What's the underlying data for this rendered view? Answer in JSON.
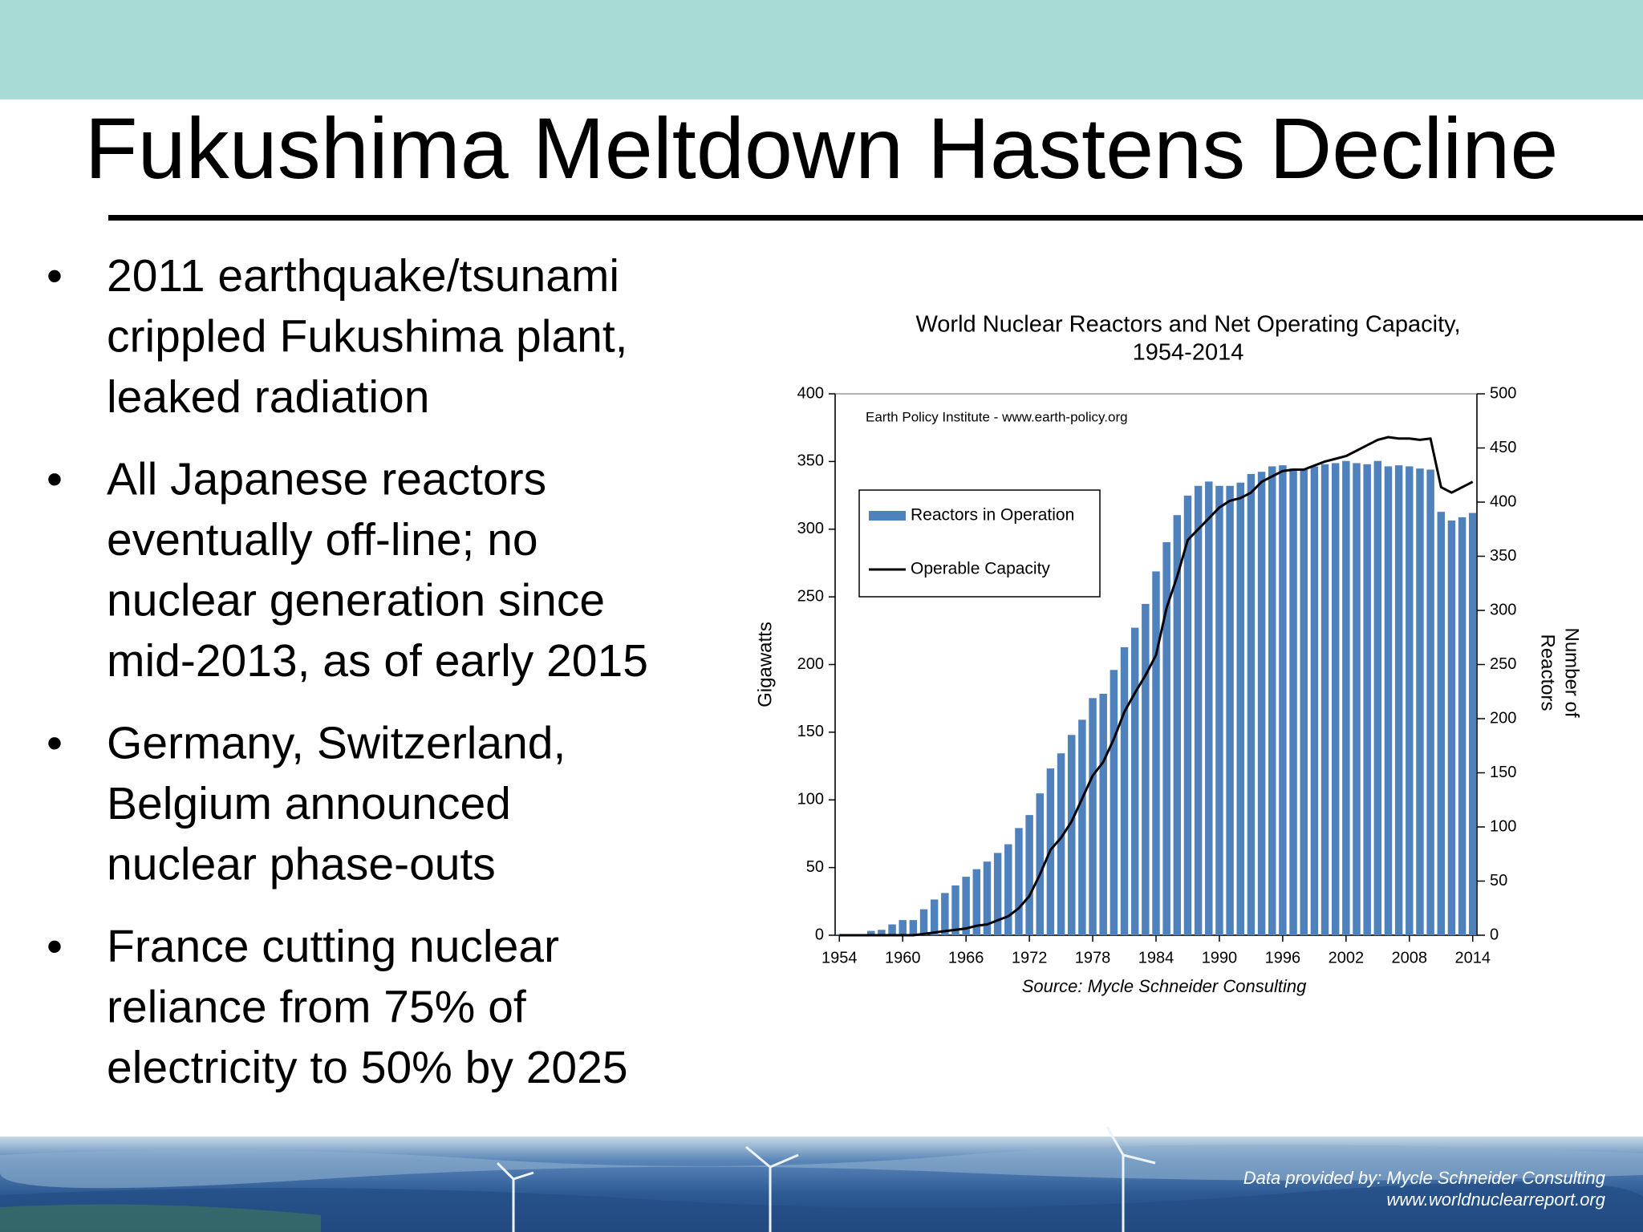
{
  "header": {
    "title": "Fukushima Meltdown Hastens Decline"
  },
  "bullets": [
    [
      "2011 earthquake/tsunami",
      "crippled Fukushima plant,",
      "leaked radiation"
    ],
    [
      "All Japanese reactors",
      "eventually off-line; no",
      "nuclear generation since",
      "mid-2013, as of early 2015"
    ],
    [
      "Germany, Switzerland,",
      "Belgium announced",
      "nuclear phase-outs"
    ],
    [
      "France cutting nuclear",
      "reliance from 75% of",
      "electricity to 50% by 2025"
    ]
  ],
  "chart_data": {
    "type": "bar",
    "title": [
      "World Nuclear Reactors and Net Operating Capacity,",
      "1954-2014"
    ],
    "annotation": "Earth Policy Institute - www.earth-policy.org",
    "source": "Source: Mycle Schneider Consulting",
    "ylabel": "Gigawatts",
    "y2label": [
      "Number of",
      "Reactors"
    ],
    "legend": "upper left",
    "x": [
      1954,
      1955,
      1956,
      1957,
      1958,
      1959,
      1960,
      1961,
      1962,
      1963,
      1964,
      1965,
      1966,
      1967,
      1968,
      1969,
      1970,
      1971,
      1972,
      1973,
      1974,
      1975,
      1976,
      1977,
      1978,
      1979,
      1980,
      1981,
      1982,
      1983,
      1984,
      1985,
      1986,
      1987,
      1988,
      1989,
      1990,
      1991,
      1992,
      1993,
      1994,
      1995,
      1996,
      1997,
      1998,
      1999,
      2000,
      2001,
      2002,
      2003,
      2004,
      2005,
      2006,
      2007,
      2008,
      2009,
      2010,
      2011,
      2012,
      2013,
      2014
    ],
    "xlim": [
      1953.6,
      2014.4
    ],
    "xticks": [
      1954,
      1960,
      1966,
      1972,
      1978,
      1984,
      1990,
      1996,
      2002,
      2008,
      2014
    ],
    "ylim": [
      0,
      400
    ],
    "yticks": [
      0,
      50,
      100,
      150,
      200,
      250,
      300,
      350,
      400
    ],
    "y2lim": [
      0,
      500
    ],
    "y2ticks": [
      0,
      50,
      100,
      150,
      200,
      250,
      300,
      350,
      400,
      450,
      500
    ],
    "series": [
      {
        "name": "Reactors in Operation",
        "type": "bar",
        "axis": "y2",
        "color": "#4f81bd",
        "values": [
          1,
          1,
          1,
          4,
          5,
          10,
          14,
          14,
          24,
          33,
          39,
          46,
          54,
          61,
          68,
          76,
          84,
          99,
          111,
          131,
          154,
          168,
          185,
          199,
          219,
          223,
          245,
          266,
          284,
          306,
          336,
          363,
          388,
          406,
          415,
          419,
          415,
          415,
          418,
          426,
          428,
          433,
          434,
          431,
          430,
          433,
          435,
          436,
          438,
          436,
          435,
          438,
          433,
          434,
          433,
          431,
          430,
          391,
          383,
          386,
          390
        ]
      },
      {
        "name": "Operable Capacity",
        "type": "line",
        "color": "#000000",
        "values": [
          0,
          0,
          0,
          0,
          0,
          0,
          0,
          0,
          1,
          2,
          3,
          4,
          5,
          7,
          8,
          11,
          14,
          20,
          29,
          45,
          63,
          72,
          84,
          101,
          118,
          128,
          145,
          165,
          179,
          192,
          207,
          242,
          265,
          292,
          300,
          308,
          316,
          321,
          323,
          327,
          335,
          339,
          343,
          344,
          344,
          347,
          350,
          352,
          354,
          358,
          362,
          366,
          368,
          367,
          367,
          366,
          367,
          331,
          327,
          331,
          335
        ]
      }
    ]
  },
  "footer": {
    "lines": [
      "Data provided by: Mycle Schneider Consulting",
      "www.worldnuclearreport.org"
    ]
  }
}
